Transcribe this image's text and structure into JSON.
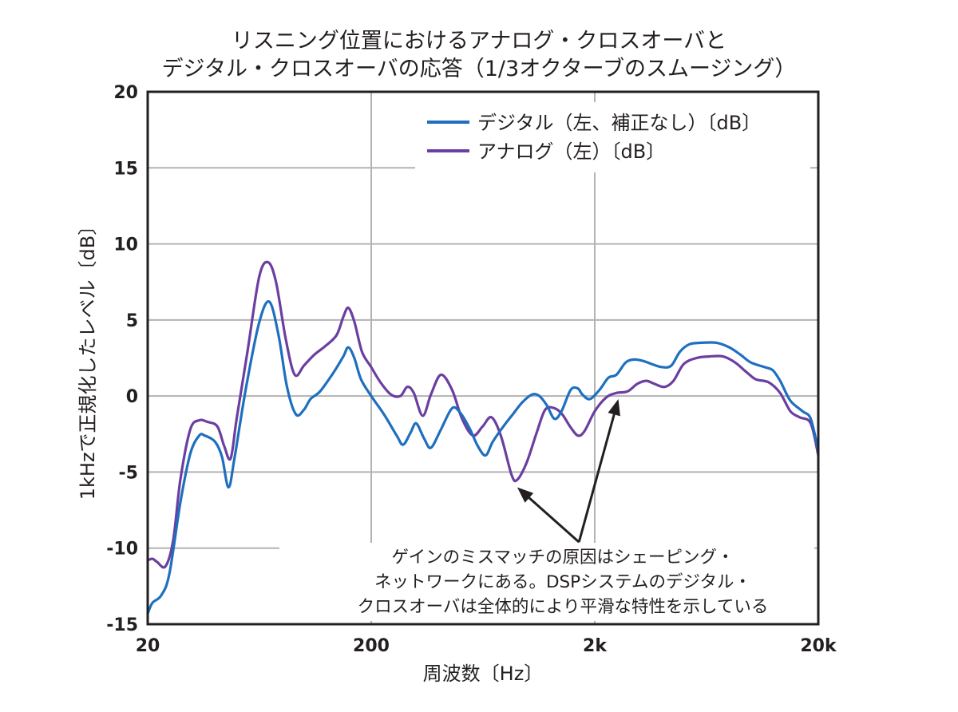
{
  "chart_data": {
    "type": "line",
    "title_lines": [
      "リスニング位置におけるアナログ・クロスオーバと",
      "デジタル・クロスオーバの応答（1/3オクターブのスムージング）"
    ],
    "xlabel": "周波数〔Hz〕",
    "ylabel": "1kHzで正規化したレベル〔dB〕",
    "x_scale": "log",
    "xlim": [
      20,
      20000
    ],
    "ylim": [
      -15,
      20
    ],
    "x_ticks": [
      {
        "value": 20,
        "label": "20"
      },
      {
        "value": 200,
        "label": "200"
      },
      {
        "value": 2000,
        "label": "2k"
      },
      {
        "value": 20000,
        "label": "20k"
      }
    ],
    "y_ticks": [
      {
        "value": 20,
        "label": "20"
      },
      {
        "value": 15,
        "label": "15"
      },
      {
        "value": 10,
        "label": "10"
      },
      {
        "value": 5,
        "label": "5"
      },
      {
        "value": 0,
        "label": "0"
      },
      {
        "value": -5,
        "label": "-5"
      },
      {
        "value": -10,
        "label": "-10"
      },
      {
        "value": -15,
        "label": "-15"
      }
    ],
    "grid": true,
    "legend_position": "top-right",
    "series": [
      {
        "name": "デジタル（左、補正なし）〔dB〕",
        "color": "#1f6fbf",
        "points": [
          [
            20,
            -14.3
          ],
          [
            21,
            -13.6
          ],
          [
            23,
            -13.1
          ],
          [
            25,
            -11.7
          ],
          [
            28,
            -7.0
          ],
          [
            31,
            -3.8
          ],
          [
            34,
            -2.6
          ],
          [
            36,
            -2.6
          ],
          [
            40,
            -3.0
          ],
          [
            43,
            -4.0
          ],
          [
            46,
            -6.0
          ],
          [
            49,
            -4.0
          ],
          [
            55,
            0.5
          ],
          [
            63,
            4.8
          ],
          [
            70,
            6.2
          ],
          [
            77,
            4.0
          ],
          [
            84,
            0.6
          ],
          [
            92,
            -1.2
          ],
          [
            100,
            -0.9
          ],
          [
            107,
            -0.2
          ],
          [
            118,
            0.3
          ],
          [
            135,
            1.5
          ],
          [
            150,
            2.6
          ],
          [
            158,
            3.2
          ],
          [
            168,
            2.5
          ],
          [
            180,
            1.1
          ],
          [
            200,
            0.0
          ],
          [
            228,
            -1.2
          ],
          [
            260,
            -2.6
          ],
          [
            278,
            -3.2
          ],
          [
            300,
            -2.4
          ],
          [
            318,
            -1.8
          ],
          [
            345,
            -2.8
          ],
          [
            370,
            -3.4
          ],
          [
            410,
            -2.2
          ],
          [
            460,
            -0.8
          ],
          [
            500,
            -1.1
          ],
          [
            550,
            -2.1
          ],
          [
            600,
            -3.3
          ],
          [
            650,
            -3.9
          ],
          [
            700,
            -3.0
          ],
          [
            780,
            -2.0
          ],
          [
            860,
            -1.2
          ],
          [
            950,
            -0.4
          ],
          [
            1050,
            0.1
          ],
          [
            1130,
            0.0
          ],
          [
            1220,
            -0.6
          ],
          [
            1320,
            -1.5
          ],
          [
            1420,
            -1.0
          ],
          [
            1560,
            0.4
          ],
          [
            1680,
            0.5
          ],
          [
            1760,
            0.1
          ],
          [
            1900,
            -0.2
          ],
          [
            2100,
            0.4
          ],
          [
            2300,
            1.2
          ],
          [
            2500,
            1.4
          ],
          [
            2750,
            2.2
          ],
          [
            3000,
            2.4
          ],
          [
            3300,
            2.3
          ],
          [
            3600,
            2.1
          ],
          [
            4000,
            1.9
          ],
          [
            4400,
            2.0
          ],
          [
            4800,
            2.9
          ],
          [
            5300,
            3.4
          ],
          [
            6000,
            3.5
          ],
          [
            7000,
            3.5
          ],
          [
            8000,
            3.2
          ],
          [
            9000,
            2.7
          ],
          [
            10000,
            2.2
          ],
          [
            11500,
            1.9
          ],
          [
            12500,
            1.7
          ],
          [
            13500,
            1.0
          ],
          [
            15000,
            -0.3
          ],
          [
            17000,
            -1.0
          ],
          [
            18500,
            -1.5
          ],
          [
            20000,
            -3.6
          ]
        ]
      },
      {
        "name": "アナログ（左）〔dB〕",
        "color": "#6b3fa0",
        "points": [
          [
            20,
            -10.8
          ],
          [
            21,
            -10.7
          ],
          [
            22,
            -10.9
          ],
          [
            24,
            -11.2
          ],
          [
            26,
            -9.5
          ],
          [
            28,
            -5.5
          ],
          [
            31,
            -2.2
          ],
          [
            34,
            -1.6
          ],
          [
            37,
            -1.7
          ],
          [
            41,
            -2.0
          ],
          [
            44,
            -3.3
          ],
          [
            47,
            -4.1
          ],
          [
            50,
            -1.5
          ],
          [
            56,
            3.0
          ],
          [
            63,
            7.8
          ],
          [
            69,
            8.8
          ],
          [
            75,
            7.5
          ],
          [
            83,
            3.7
          ],
          [
            91,
            1.4
          ],
          [
            100,
            2.0
          ],
          [
            111,
            2.7
          ],
          [
            125,
            3.3
          ],
          [
            140,
            4.0
          ],
          [
            150,
            5.2
          ],
          [
            158,
            5.8
          ],
          [
            168,
            4.9
          ],
          [
            182,
            2.9
          ],
          [
            200,
            1.9
          ],
          [
            220,
            0.9
          ],
          [
            245,
            0.1
          ],
          [
            270,
            0.0
          ],
          [
            290,
            0.6
          ],
          [
            310,
            0.2
          ],
          [
            340,
            -1.3
          ],
          [
            370,
            0.1
          ],
          [
            410,
            1.4
          ],
          [
            460,
            0.4
          ],
          [
            510,
            -1.5
          ],
          [
            570,
            -2.6
          ],
          [
            630,
            -2.0
          ],
          [
            690,
            -1.4
          ],
          [
            760,
            -2.6
          ],
          [
            850,
            -5.2
          ],
          [
            900,
            -5.5
          ],
          [
            990,
            -4.4
          ],
          [
            1100,
            -2.4
          ],
          [
            1200,
            -0.9
          ],
          [
            1320,
            -0.8
          ],
          [
            1430,
            -1.2
          ],
          [
            1550,
            -2.0
          ],
          [
            1680,
            -2.6
          ],
          [
            1800,
            -2.3
          ],
          [
            2000,
            -1.0
          ],
          [
            2250,
            -0.1
          ],
          [
            2500,
            0.2
          ],
          [
            2800,
            0.3
          ],
          [
            3100,
            0.8
          ],
          [
            3400,
            1.0
          ],
          [
            3700,
            0.8
          ],
          [
            4100,
            0.6
          ],
          [
            4500,
            1.0
          ],
          [
            5000,
            2.1
          ],
          [
            5700,
            2.5
          ],
          [
            6500,
            2.6
          ],
          [
            7500,
            2.6
          ],
          [
            8500,
            2.2
          ],
          [
            9500,
            1.6
          ],
          [
            10500,
            1.1
          ],
          [
            12000,
            0.9
          ],
          [
            13500,
            0.2
          ],
          [
            15000,
            -1.0
          ],
          [
            16500,
            -1.4
          ],
          [
            18500,
            -1.8
          ],
          [
            20000,
            -3.9
          ]
        ]
      }
    ],
    "annotation": {
      "lines": [
        "ゲインのミスマッチの原因はシェーピング・",
        "ネットワークにある。DSPシステムのデジタル・",
        "クロスオーバは全体的により平滑な特性を示している"
      ],
      "arrow_targets": [
        {
          "x": 900,
          "y": -6.0
        },
        {
          "x": 2550,
          "y": -0.2
        }
      ],
      "arrow_origin": {
        "x": 1700,
        "y": -9.6
      }
    }
  }
}
